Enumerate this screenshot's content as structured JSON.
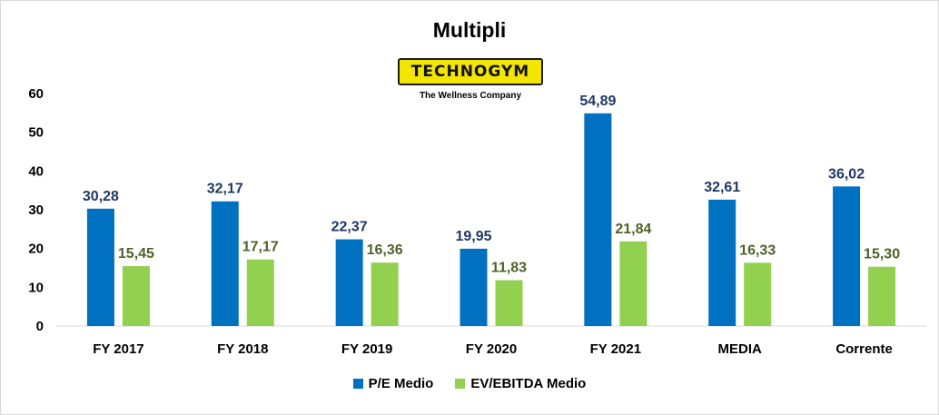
{
  "chart_data": {
    "type": "bar",
    "title": "Multipli",
    "categories": [
      "FY 2017",
      "FY 2018",
      "FY 2019",
      "FY 2020",
      "FY 2021",
      "MEDIA",
      "Corrente"
    ],
    "series": [
      {
        "name": "P/E Medio",
        "color": "#0070c0",
        "label_color": "#1f3864",
        "values": [
          30.28,
          32.17,
          22.37,
          19.95,
          54.89,
          32.61,
          36.02
        ],
        "labels": [
          "30,28",
          "32,17",
          "22,37",
          "19,95",
          "54,89",
          "32,61",
          "36,02"
        ]
      },
      {
        "name": "EV/EBITDA Medio",
        "color": "#92d050",
        "label_color": "#4f6228",
        "values": [
          15.45,
          17.17,
          16.36,
          11.83,
          21.84,
          16.33,
          15.3
        ],
        "labels": [
          "15,45",
          "17,17",
          "16,36",
          "11,83",
          "21,84",
          "16,33",
          "15,30"
        ]
      }
    ],
    "ylim": [
      0,
      60
    ],
    "yticks": [
      0,
      10,
      20,
      30,
      40,
      50,
      60
    ],
    "grid": false,
    "legend": "bottom"
  },
  "logo": {
    "text": "TECHNOGYM",
    "tagline": "The Wellness Company"
  }
}
